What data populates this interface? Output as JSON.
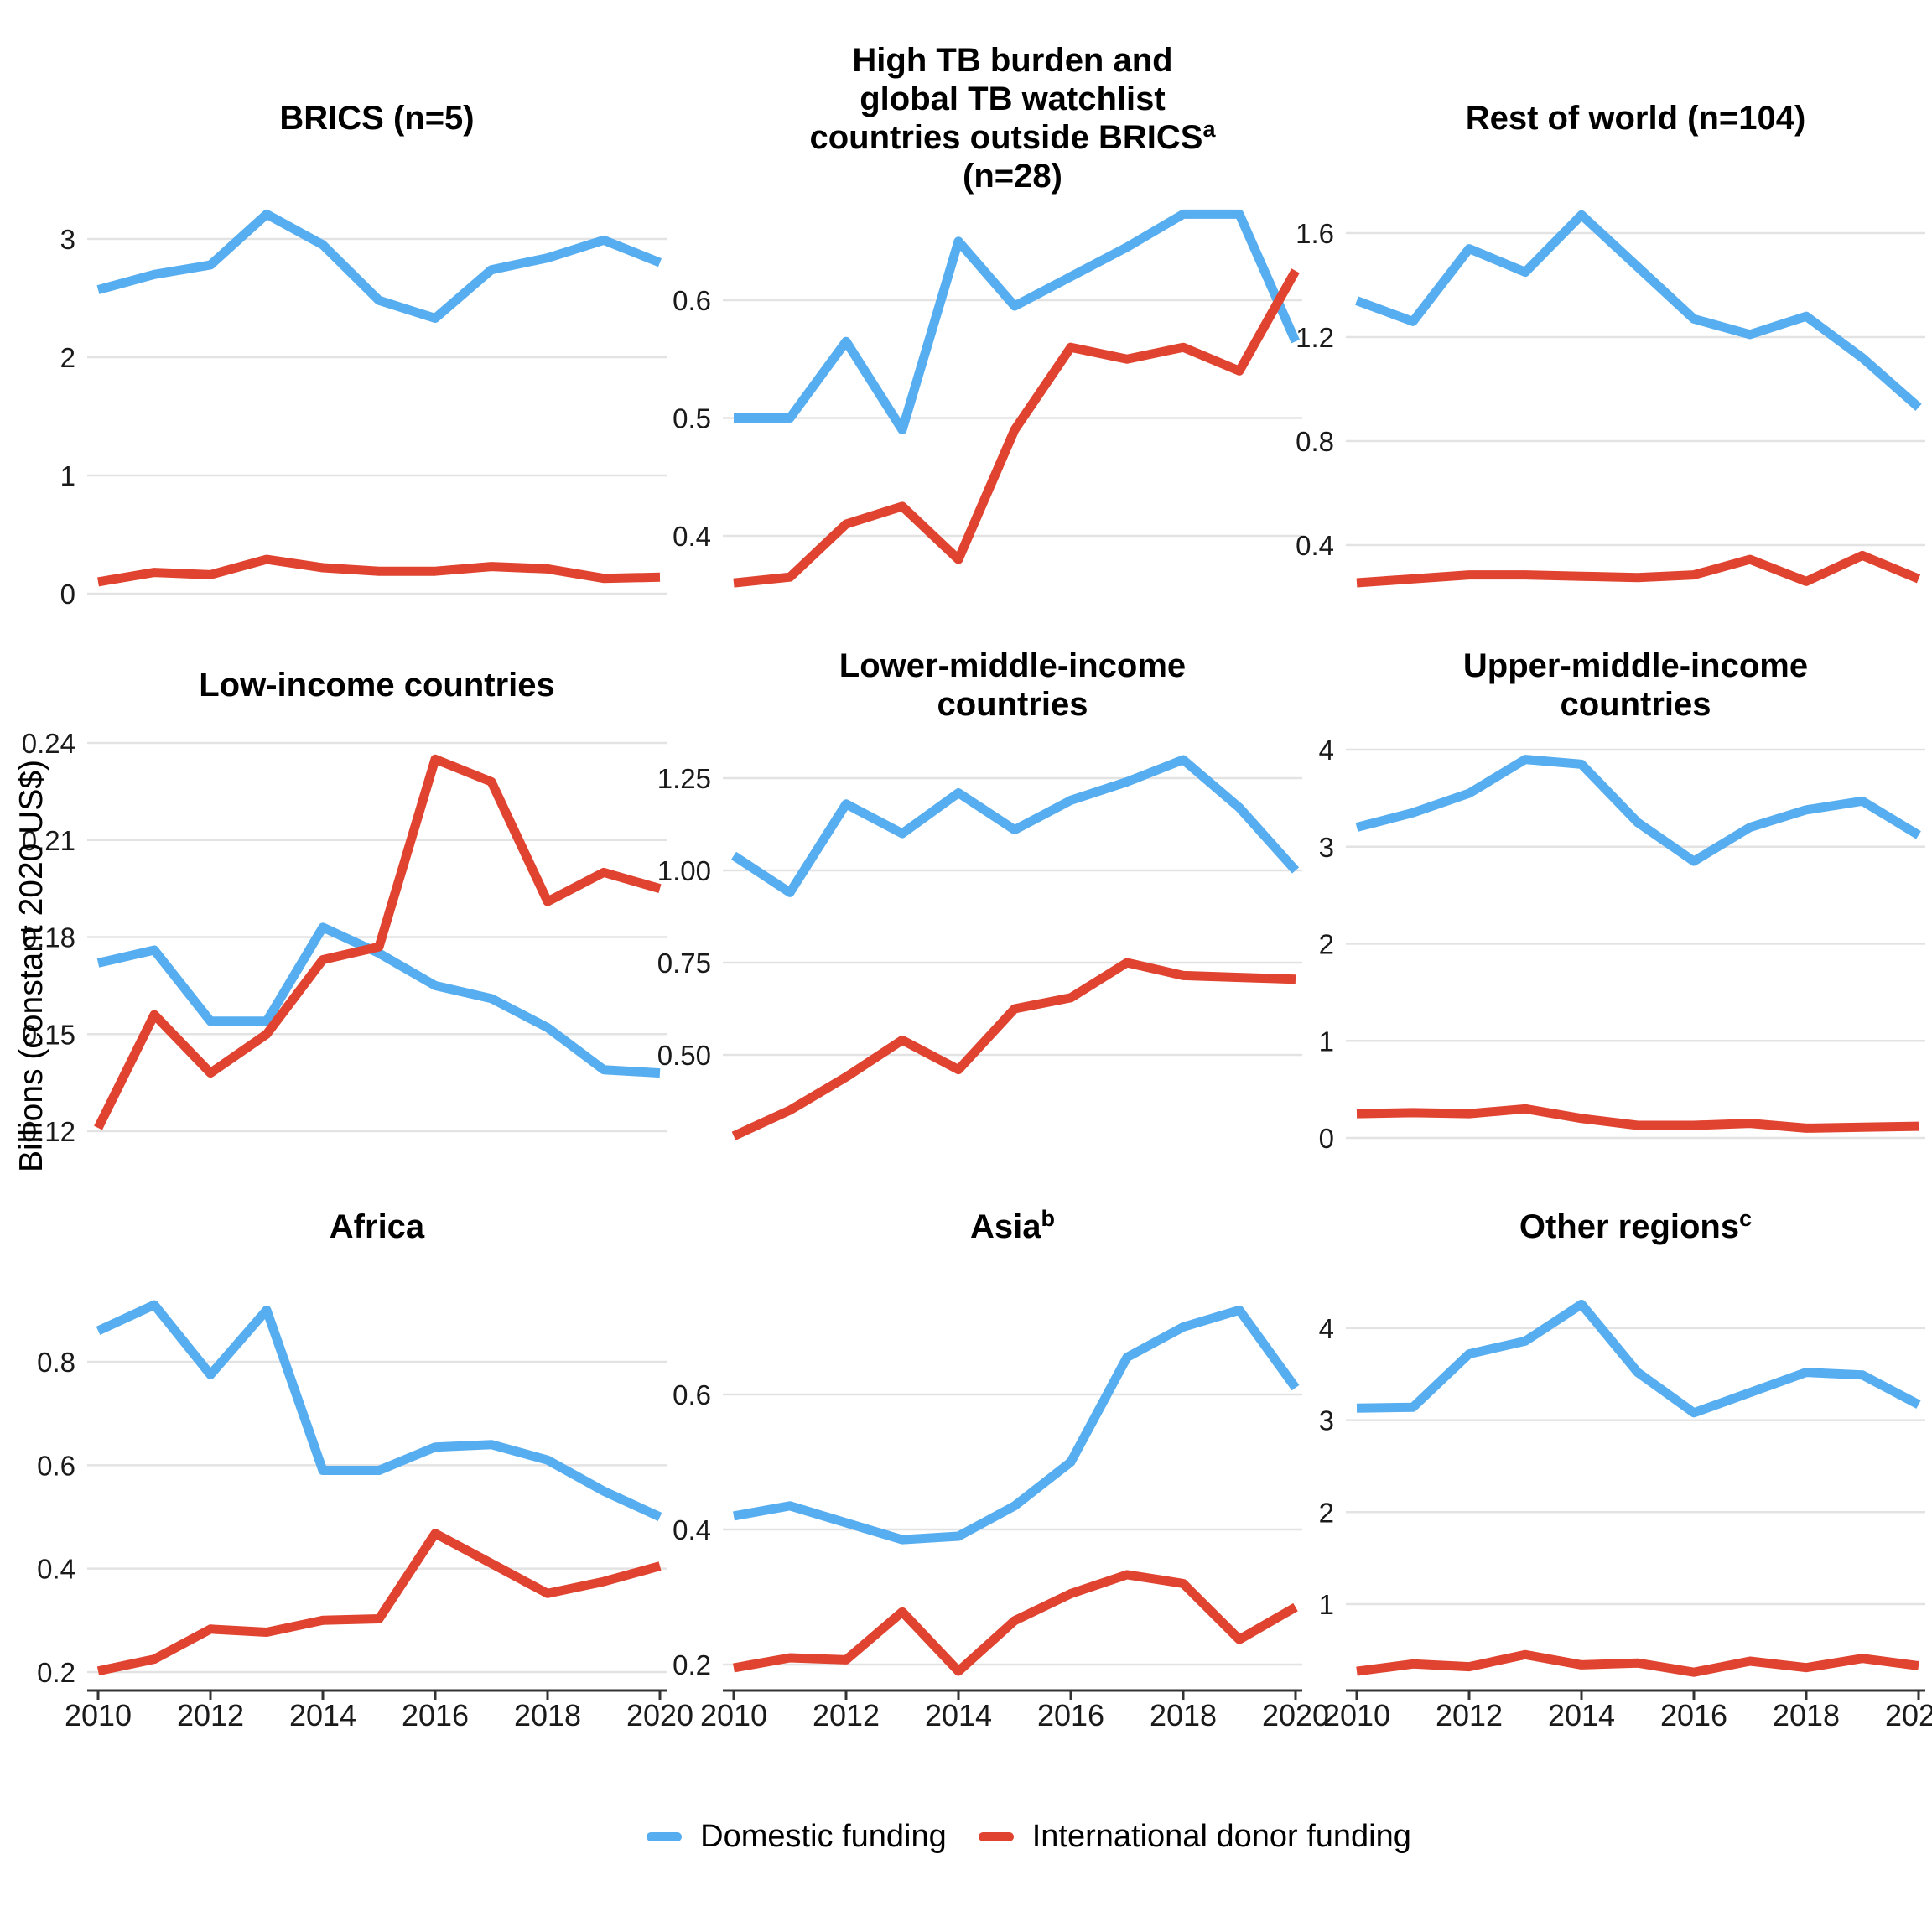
{
  "y_axis_label": "Billions (constant 2020 US$)",
  "legend": {
    "items": [
      {
        "label": "Domestic funding",
        "color": "#56ADF0"
      },
      {
        "label": "International donor funding",
        "color": "#E0432F"
      }
    ]
  },
  "x_axis": {
    "tick_labels": [
      "2010",
      "2012",
      "2014",
      "2016",
      "2018",
      "2020"
    ]
  },
  "chart_data": {
    "type": "line",
    "x": [
      2010,
      2011,
      2012,
      2013,
      2014,
      2015,
      2016,
      2017,
      2018,
      2019,
      2020
    ],
    "series_names": [
      "Domestic funding",
      "International donor funding"
    ],
    "colors": {
      "domestic": "#56ADF0",
      "international_donor": "#E0432F"
    },
    "grid": "horizontal-only",
    "legend_position": "bottom",
    "panels": [
      {
        "title_lines": [
          "BRICS (n=5)"
        ],
        "sup": null,
        "yticks": [
          0,
          1,
          2,
          3
        ],
        "ytick_labels": [
          "0",
          "1",
          "2",
          "3"
        ],
        "ylim": [
          0,
          3.43
        ],
        "domestic": [
          2.57,
          2.7,
          2.78,
          3.21,
          2.95,
          2.48,
          2.33,
          2.74,
          2.84,
          2.99,
          2.8
        ],
        "international_donor": [
          0.1,
          0.18,
          0.16,
          0.29,
          0.22,
          0.19,
          0.19,
          0.23,
          0.21,
          0.13,
          0.14
        ]
      },
      {
        "title_lines": [
          "High TB burden and",
          "global TB watchlist",
          "countries outside BRICS",
          "(n=28)"
        ],
        "sup": {
          "line": 2,
          "text": "a"
        },
        "yticks": [
          0.4,
          0.5,
          0.6
        ],
        "ytick_labels": [
          "0.4",
          "0.5",
          "0.6"
        ],
        "ylim": [
          0.35,
          0.7
        ],
        "domestic": [
          0.5,
          0.5,
          0.565,
          0.49,
          0.65,
          0.595,
          0.62,
          0.645,
          0.673,
          0.673,
          0.565
        ],
        "international_donor": [
          0.36,
          0.365,
          0.41,
          0.425,
          0.38,
          0.49,
          0.56,
          0.55,
          0.56,
          0.54,
          0.625
        ]
      },
      {
        "title_lines": [
          "Rest of world (n=104)"
        ],
        "sup": null,
        "yticks": [
          0.4,
          0.8,
          1.2,
          1.6
        ],
        "ytick_labels": [
          "0.4",
          "0.8",
          "1.2",
          "1.6"
        ],
        "ylim": [
          0.19,
          1.77
        ],
        "domestic": [
          1.34,
          1.26,
          1.54,
          1.45,
          1.67,
          1.47,
          1.27,
          1.21,
          1.28,
          1.12,
          0.93
        ],
        "international_donor": [
          0.255,
          0.27,
          0.285,
          0.285,
          0.28,
          0.275,
          0.285,
          0.345,
          0.26,
          0.36,
          0.27
        ]
      },
      {
        "title_lines": [
          "Low-income countries"
        ],
        "sup": null,
        "yticks": [
          0.12,
          0.15,
          0.18,
          0.21,
          0.24
        ],
        "ytick_labels": [
          "0.12",
          "0.15",
          "0.18",
          "0.21",
          "0.24"
        ],
        "ylim": [
          0.117,
          0.242
        ],
        "domestic": [
          0.172,
          0.176,
          0.154,
          0.154,
          0.183,
          0.175,
          0.165,
          0.161,
          0.152,
          0.139,
          0.138
        ],
        "international_donor": [
          0.121,
          0.156,
          0.138,
          0.15,
          0.173,
          0.177,
          0.235,
          0.228,
          0.191,
          0.2,
          0.195
        ]
      },
      {
        "title_lines": [
          "Lower-middle-income",
          "countries"
        ],
        "sup": null,
        "yticks": [
          0.5,
          0.75,
          1.0,
          1.25
        ],
        "ytick_labels": [
          "0.50",
          "0.75",
          "1.00",
          "1.25"
        ],
        "ylim": [
          0.27,
          1.36
        ],
        "domestic": [
          1.04,
          0.94,
          1.18,
          1.1,
          1.21,
          1.11,
          1.19,
          1.24,
          1.3,
          1.17,
          1.0
        ],
        "international_donor": [
          0.28,
          0.35,
          0.44,
          0.54,
          0.46,
          0.625,
          0.655,
          0.75,
          0.715,
          0.71,
          0.705
        ]
      },
      {
        "title_lines": [
          "Upper-middle-income",
          "countries"
        ],
        "sup": null,
        "yticks": [
          0,
          1,
          2,
          3,
          4
        ],
        "ytick_labels": [
          "0",
          "1",
          "2",
          "3",
          "4"
        ],
        "ylim": [
          0,
          4.12
        ],
        "domestic": [
          3.2,
          3.35,
          3.55,
          3.9,
          3.85,
          3.25,
          2.85,
          3.2,
          3.38,
          3.47,
          3.12
        ],
        "international_donor": [
          0.25,
          0.26,
          0.25,
          0.3,
          0.2,
          0.13,
          0.13,
          0.15,
          0.1,
          0.11,
          0.12
        ]
      },
      {
        "title_lines": [
          "Africa"
        ],
        "sup": null,
        "yticks": [
          0.2,
          0.4,
          0.6,
          0.8
        ],
        "ytick_labels": [
          "0.2",
          "0.4",
          "0.6",
          "0.8"
        ],
        "ylim": [
          0.16,
          0.93
        ],
        "domestic": [
          0.86,
          0.91,
          0.775,
          0.9,
          0.59,
          0.59,
          0.635,
          0.64,
          0.61,
          0.55,
          0.5
        ],
        "international_donor": [
          0.202,
          0.225,
          0.283,
          0.277,
          0.3,
          0.303,
          0.468,
          0.41,
          0.352,
          0.375,
          0.405
        ]
      },
      {
        "title_lines": [
          "Asia"
        ],
        "sup": {
          "line": 0,
          "text": "b"
        },
        "yticks": [
          0.2,
          0.4,
          0.6
        ],
        "ytick_labels": [
          "0.2",
          "0.4",
          "0.6"
        ],
        "ylim": [
          0.16,
          0.75
        ],
        "domestic": [
          0.42,
          0.435,
          0.41,
          0.385,
          0.39,
          0.435,
          0.5,
          0.655,
          0.7,
          0.725,
          0.61
        ],
        "international_donor": [
          0.195,
          0.21,
          0.207,
          0.278,
          0.19,
          0.265,
          0.305,
          0.333,
          0.32,
          0.237,
          0.285
        ]
      },
      {
        "title_lines": [
          "Other regions"
        ],
        "sup": {
          "line": 0,
          "text": "c"
        },
        "yticks": [
          1,
          2,
          3,
          4
        ],
        "ytick_labels": [
          "1",
          "2",
          "3",
          "4"
        ],
        "ylim": [
          0.06,
          4.36
        ],
        "domestic": [
          3.13,
          3.14,
          3.72,
          3.86,
          4.26,
          3.52,
          3.08,
          3.3,
          3.52,
          3.49,
          3.17
        ],
        "international_donor": [
          0.27,
          0.35,
          0.32,
          0.45,
          0.34,
          0.36,
          0.26,
          0.38,
          0.31,
          0.41,
          0.33
        ]
      }
    ]
  }
}
